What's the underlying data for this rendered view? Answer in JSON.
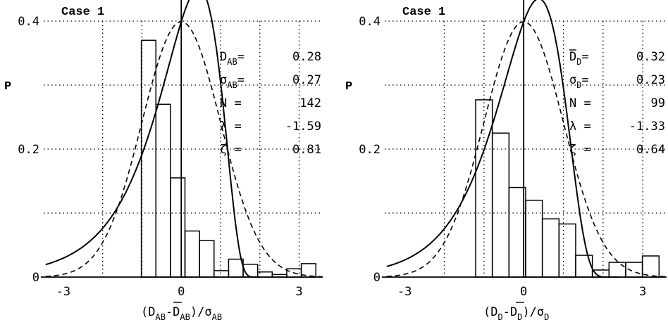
{
  "chart_data": [
    {
      "type": "bar",
      "title": "Case 1",
      "ylabel": "P",
      "xlabel": {
        "pre": "(D",
        "s1": "AB",
        "mid": "-D",
        "s2": "AB",
        "post": ")/σ",
        "s3": "AB"
      },
      "xlim": [
        -3.5,
        3.6
      ],
      "ylim": [
        0,
        0.4
      ],
      "x_ticks": [
        {
          "v": -3,
          "label": "-3"
        },
        {
          "v": 0,
          "label": "0"
        },
        {
          "v": 3,
          "label": "3"
        }
      ],
      "y_ticks": [
        {
          "v": 0,
          "label": "0"
        },
        {
          "v": 0.2,
          "label": "0.2"
        },
        {
          "v": 0.4,
          "label": "0.4"
        }
      ],
      "grid": true,
      "bin_width": 0.37,
      "bins": [
        {
          "x": -0.83,
          "p": 0.37
        },
        {
          "x": -0.46,
          "p": 0.27
        },
        {
          "x": -0.09,
          "p": 0.155
        },
        {
          "x": 0.28,
          "p": 0.072
        },
        {
          "x": 0.65,
          "p": 0.057
        },
        {
          "x": 1.02,
          "p": 0.01
        },
        {
          "x": 1.39,
          "p": 0.028
        },
        {
          "x": 1.76,
          "p": 0.02
        },
        {
          "x": 2.13,
          "p": 0.008
        },
        {
          "x": 2.5,
          "p": 0.004
        },
        {
          "x": 2.87,
          "p": 0.013
        },
        {
          "x": 3.24,
          "p": 0.021
        }
      ],
      "series": [
        {
          "style": "solid",
          "kind": "fitted",
          "lambda": -1.59
        },
        {
          "style": "dashed",
          "kind": "normal"
        }
      ],
      "stats": [
        {
          "pre": "D",
          "sub": "AB",
          "bar": false,
          "sep": "= ",
          "value": "0.28"
        },
        {
          "pre": "σ",
          "sub": "AB",
          "bar": false,
          "sep": "= ",
          "value": "0.27"
        },
        {
          "pre": "N",
          "sub": "",
          "bar": false,
          "sep": "  =",
          "value": "142"
        },
        {
          "pre": "λ",
          "sub": "",
          "bar": false,
          "sep": "  =",
          "value": "-1.59"
        },
        {
          "pre": "ζ",
          "sub": "",
          "bar": false,
          "sep": "  = ",
          "value": "0.81"
        }
      ]
    },
    {
      "type": "bar",
      "title": "Case 1",
      "ylabel": "P",
      "xlabel": {
        "pre": "(D",
        "s1": "D",
        "mid": "-D",
        "s2": "D",
        "post": ")/σ",
        "s3": "D"
      },
      "xlim": [
        -3.5,
        3.6
      ],
      "ylim": [
        0,
        0.4
      ],
      "x_ticks": [
        {
          "v": -3,
          "label": "-3"
        },
        {
          "v": 0,
          "label": "0"
        },
        {
          "v": 3,
          "label": "3"
        }
      ],
      "y_ticks": [
        {
          "v": 0,
          "label": "0"
        },
        {
          "v": 0.2,
          "label": "0.2"
        },
        {
          "v": 0.4,
          "label": "0.4"
        }
      ],
      "grid": true,
      "bin_width": 0.42,
      "bins": [
        {
          "x": -1.0,
          "p": 0.277
        },
        {
          "x": -0.58,
          "p": 0.225
        },
        {
          "x": -0.16,
          "p": 0.14
        },
        {
          "x": 0.26,
          "p": 0.12
        },
        {
          "x": 0.68,
          "p": 0.091
        },
        {
          "x": 1.1,
          "p": 0.083
        },
        {
          "x": 1.52,
          "p": 0.034
        },
        {
          "x": 1.94,
          "p": 0.011
        },
        {
          "x": 2.36,
          "p": 0.023
        },
        {
          "x": 2.78,
          "p": 0.023
        },
        {
          "x": 3.2,
          "p": 0.033
        }
      ],
      "series": [
        {
          "style": "solid",
          "kind": "fitted",
          "lambda": -1.33
        },
        {
          "style": "dashed",
          "kind": "normal"
        }
      ],
      "stats": [
        {
          "pre": "D",
          "sub": "D",
          "bar": true,
          "sep": "= ",
          "value": "0.32"
        },
        {
          "pre": "σ",
          "sub": "D",
          "bar": false,
          "sep": "= ",
          "value": "0.23"
        },
        {
          "pre": "N",
          "sub": "",
          "bar": false,
          "sep": " =",
          "value": "99"
        },
        {
          "pre": "λ",
          "sub": "",
          "bar": false,
          "sep": " =",
          "value": "-1.33"
        },
        {
          "pre": "ζ",
          "sub": "",
          "bar": false,
          "sep": " = ",
          "value": "0.64"
        }
      ]
    }
  ]
}
